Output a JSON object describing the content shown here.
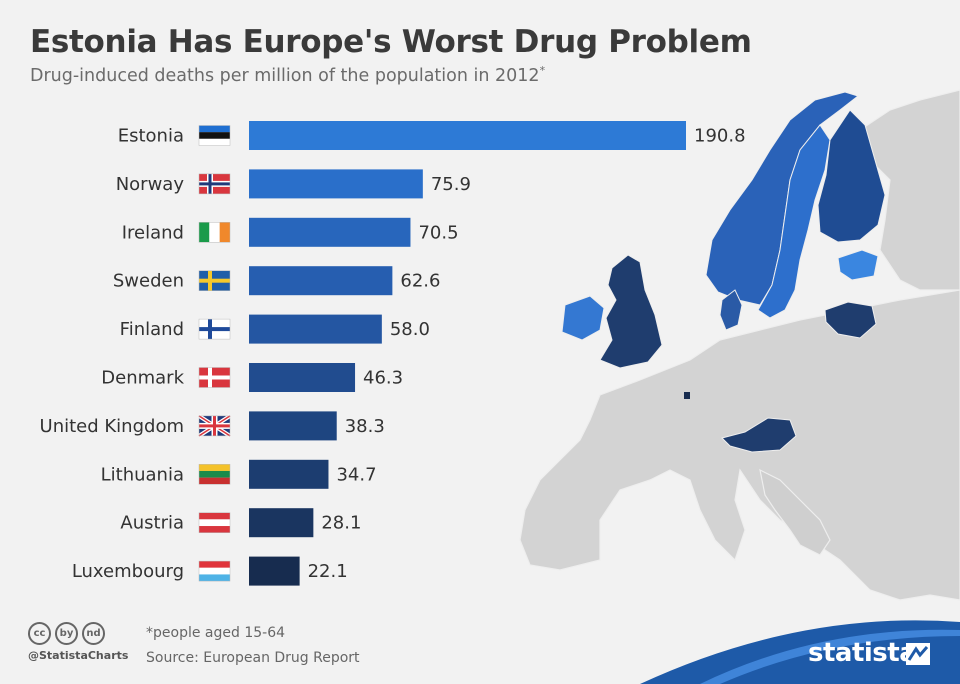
{
  "header": {
    "title": "Estonia Has Europe's Worst Drug Problem",
    "subtitle": "Drug-induced deaths per million of the population in 2012",
    "subtitle_marker": "*"
  },
  "chart_data": {
    "type": "bar",
    "orientation": "horizontal",
    "title": "Estonia Has Europe's Worst Drug Problem",
    "subtitle": "Drug-induced deaths per million of the population in 2012*",
    "categories": [
      "Estonia",
      "Norway",
      "Ireland",
      "Sweden",
      "Finland",
      "Denmark",
      "United Kingdom",
      "Lithuania",
      "Austria",
      "Luxembourg"
    ],
    "values": [
      190.8,
      75.9,
      70.5,
      62.6,
      58.0,
      46.3,
      38.3,
      34.7,
      28.1,
      22.1
    ],
    "value_labels": [
      "190.8",
      "75.9",
      "70.5",
      "62.6",
      "58.0",
      "46.3",
      "38.3",
      "34.7",
      "28.1",
      "22.1"
    ],
    "bar_colors": [
      "#2d7ad6",
      "#2a6fca",
      "#2866bc",
      "#265eb0",
      "#2456a2",
      "#214c8f",
      "#1e4580",
      "#1c3d70",
      "#1a3560",
      "#172c4f"
    ],
    "xlim": [
      0,
      190.8
    ],
    "grid": false,
    "legend": "none"
  },
  "flags": [
    "estonia-flag",
    "norway-flag",
    "ireland-flag",
    "sweden-flag",
    "finland-flag",
    "denmark-flag",
    "uk-flag",
    "lithuania-flag",
    "austria-flag",
    "luxembourg-flag"
  ],
  "footer": {
    "note": "*people aged 15-64",
    "source": "Source: European Drug Report",
    "handle": "@StatistaCharts",
    "brand": "statista",
    "cc_icons": [
      "cc",
      "by",
      "nd"
    ],
    "accent_color": "#1e5aa8"
  },
  "map": {
    "highlight_dark": "#1f3d6e",
    "highlight_mid": "#2a62b8",
    "highlight_light": "#3a86e0",
    "land_color": "#cfcfcf"
  }
}
